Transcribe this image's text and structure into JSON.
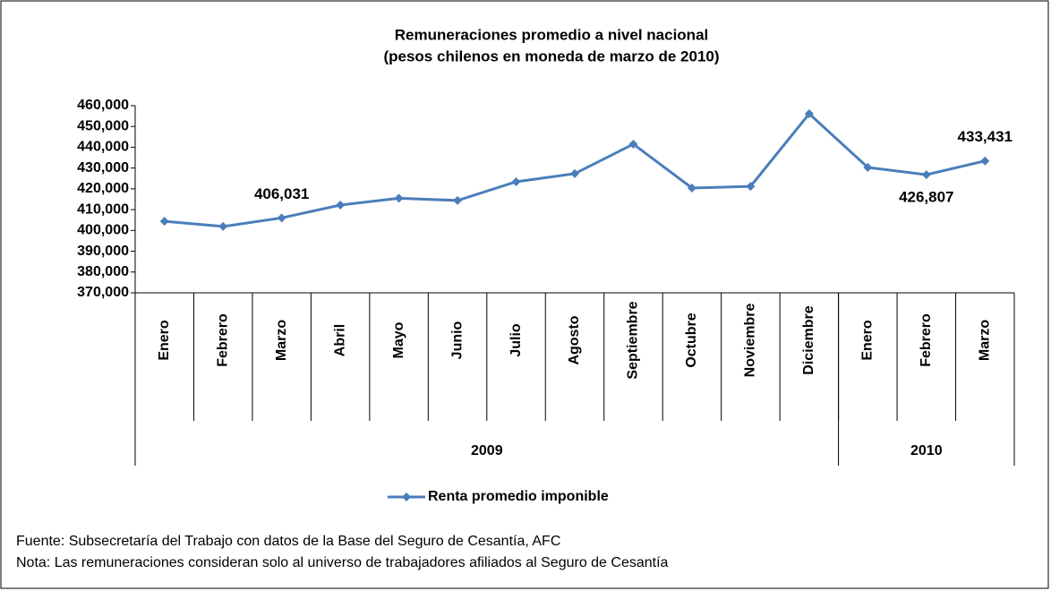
{
  "chart_data": {
    "type": "line",
    "title": [
      "Remuneraciones promedio a nivel nacional",
      "(pesos chilenos en moneda de marzo de 2010)"
    ],
    "categories": [
      "Enero",
      "Febrero",
      "Marzo",
      "Abril",
      "Mayo",
      "Junio",
      "Julio",
      "Agosto",
      "Septiembre",
      "Octubre",
      "Noviembre",
      "Diciembre",
      "Enero",
      "Febrero",
      "Marzo"
    ],
    "groups": [
      {
        "label": "2009",
        "span": 12
      },
      {
        "label": "2010",
        "span": 3
      }
    ],
    "series": [
      {
        "name": "Renta promedio imponible",
        "color": "#4a7ebb",
        "values": [
          404400,
          401900,
          406031,
          412200,
          415500,
          414400,
          423400,
          427300,
          441500,
          420400,
          421200,
          456100,
          430300,
          426807,
          433431
        ],
        "value_labels": [
          null,
          null,
          "406,031",
          null,
          null,
          null,
          null,
          null,
          null,
          null,
          null,
          null,
          null,
          "426,807",
          "433,431"
        ]
      }
    ],
    "ylim": [
      370000,
      460000
    ],
    "yticks": [
      {
        "value": 370000,
        "label": "370,000"
      },
      {
        "value": 380000,
        "label": "380,000"
      },
      {
        "value": 390000,
        "label": "390,000"
      },
      {
        "value": 400000,
        "label": "400,000"
      },
      {
        "value": 410000,
        "label": "410,000"
      },
      {
        "value": 420000,
        "label": "420,000"
      },
      {
        "value": 430000,
        "label": "430,000"
      },
      {
        "value": 440000,
        "label": "440,000"
      },
      {
        "value": 450000,
        "label": "450,000"
      },
      {
        "value": 460000,
        "label": "460,000"
      }
    ],
    "legend": "bottom",
    "notes": [
      "Fuente: Subsecretaría del Trabajo con datos de la Base del Seguro de Cesantía, AFC",
      "Nota: Las remuneraciones consideran solo al universo de trabajadores afiliados al Seguro de Cesantía"
    ]
  }
}
